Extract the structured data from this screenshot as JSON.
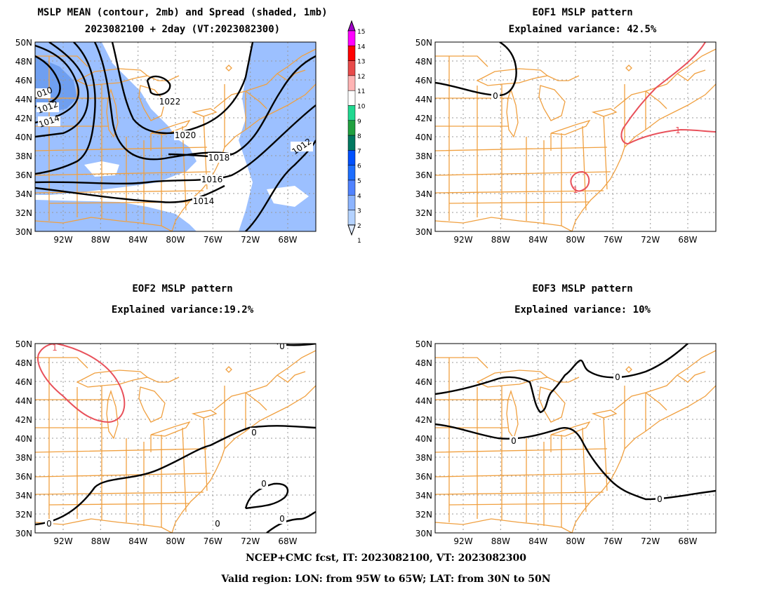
{
  "panels": {
    "p1": {
      "title_line1": "MSLP MEAN (contour, 2mb) and Spread (shaded, 1mb)",
      "title_line2": "2023082100 + 2day (VT:2023082300)"
    },
    "p2": {
      "title_line1": "EOF1 MSLP pattern",
      "title_line2": "Explained variance: 42.5%"
    },
    "p3": {
      "title_line1": "EOF2 MSLP pattern",
      "title_line2": "Explained variance:19.2%"
    },
    "p4": {
      "title_line1": "EOF3 MSLP pattern",
      "title_line2": "Explained variance: 10%"
    }
  },
  "axes": {
    "lat_ticks": [
      "50N",
      "48N",
      "46N",
      "44N",
      "42N",
      "40N",
      "38N",
      "36N",
      "34N",
      "32N",
      "30N"
    ],
    "lon_ticks": [
      "92W",
      "88W",
      "84W",
      "80W",
      "76W",
      "72W",
      "68W"
    ]
  },
  "colorbar": {
    "labels": [
      "15",
      "14",
      "13",
      "12",
      "11",
      "10",
      "9",
      "8",
      "7",
      "6",
      "5",
      "4",
      "3",
      "2",
      "1"
    ],
    "colors": [
      "#a000c8",
      "#ff00ff",
      "#ff0000",
      "#e84a4a",
      "#ffb4b4",
      "#ffffff",
      "#20d890",
      "#20a040",
      "#007860",
      "#0050ff",
      "#1e6eff",
      "#5082ff",
      "#8cb4ff",
      "#b4d2ff",
      "#e0ecff"
    ]
  },
  "contour_labels": {
    "p1": [
      "1010",
      "1012",
      "1014",
      "1022",
      "1020",
      "1018",
      "1016",
      "1014",
      "1012"
    ],
    "p2": [
      "0",
      "1",
      "1"
    ],
    "p3": [
      "1",
      "0",
      "0",
      "0",
      "0",
      "0",
      "0"
    ],
    "p4": [
      "0",
      "0",
      "0"
    ]
  },
  "footer": {
    "line1": "NCEP+CMC fcst, IT: 2023082100, VT: 2023082300",
    "line2": "Valid region: LON: from 95W to 65W; LAT: from 30N to 50N"
  },
  "colors": {
    "map_lines": "#f0a040",
    "shade": "#9cc0ff",
    "shade_dark": "#5a8ee6",
    "eof_positive": "#e8505a",
    "contour": "#000000"
  }
}
